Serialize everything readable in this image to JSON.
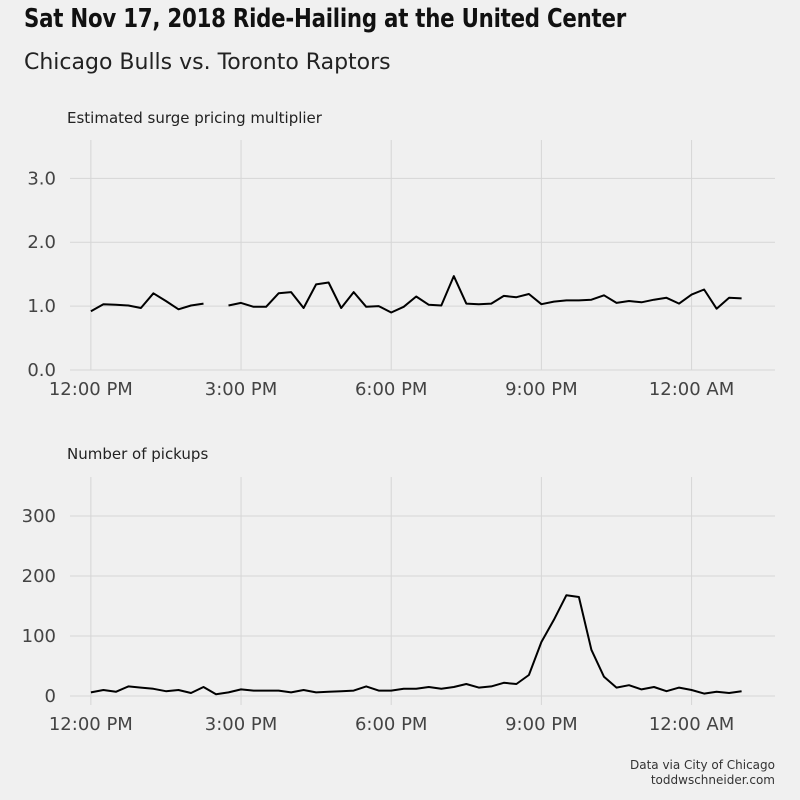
{
  "title": "Sat Nov 17, 2018 Ride-Hailing at the United Center",
  "subtitle": "Chicago Bulls vs. Toronto Raptors",
  "caption": [
    "Data via City of Chicago",
    "toddwschneider.com"
  ],
  "chart_data": [
    {
      "type": "line",
      "title": "Estimated surge pricing multiplier",
      "xlabel": "",
      "ylabel": "",
      "x_unit": "time of day (12:00 PM Nov 17 to ~1:00 AM Nov 18)",
      "xlim": [
        "11:35 AM",
        "1:40 AM"
      ],
      "ylim": [
        0,
        3.6
      ],
      "x_ticks": [
        "12:00 PM",
        "3:00 PM",
        "6:00 PM",
        "9:00 PM",
        "12:00 AM"
      ],
      "y_ticks": [
        "0.0",
        "1.0",
        "2.0",
        "3.0"
      ],
      "grid": true,
      "series": [
        {
          "x": [
            "12:00 PM",
            "12:15 PM",
            "12:30 PM",
            "12:45 PM",
            "1:00 PM",
            "1:15 PM",
            "1:30 PM",
            "1:45 PM",
            "2:00 PM",
            "2:15 PM",
            "2:30 PM",
            "2:45 PM",
            "3:00 PM",
            "3:15 PM",
            "3:30 PM",
            "3:45 PM",
            "4:00 PM",
            "4:15 PM",
            "4:30 PM",
            "4:45 PM",
            "5:00 PM",
            "5:15 PM",
            "5:30 PM",
            "5:45 PM",
            "6:00 PM",
            "6:15 PM",
            "6:30 PM",
            "6:45 PM",
            "7:00 PM",
            "7:15 PM",
            "7:30 PM",
            "7:45 PM",
            "8:00 PM",
            "8:15 PM",
            "8:30 PM",
            "8:45 PM",
            "9:00 PM",
            "9:15 PM",
            "9:30 PM",
            "9:45 PM",
            "10:00 PM",
            "10:15 PM",
            "10:30 PM",
            "10:45 PM",
            "11:00 PM",
            "11:15 PM",
            "11:30 PM",
            "11:45 PM",
            "12:00 AM",
            "12:15 AM",
            "12:30 AM",
            "12:45 AM",
            "1:00 AM"
          ],
          "values": [
            0.92,
            1.03,
            1.02,
            1.01,
            0.97,
            1.2,
            1.08,
            0.95,
            1.01,
            1.04,
            null,
            1.01,
            1.05,
            0.99,
            0.99,
            1.2,
            1.22,
            0.97,
            1.34,
            1.37,
            0.97,
            1.22,
            0.99,
            1.0,
            0.9,
            0.99,
            1.15,
            1.02,
            1.01,
            1.47,
            1.04,
            1.03,
            1.04,
            1.16,
            1.14,
            1.19,
            1.03,
            1.07,
            1.09,
            1.09,
            1.1,
            1.17,
            1.05,
            1.08,
            1.06,
            1.1,
            1.13,
            1.04,
            1.18,
            1.26,
            0.96,
            1.13,
            1.12
          ]
        }
      ]
    },
    {
      "type": "line",
      "title": "Number of pickups",
      "xlabel": "",
      "ylabel": "",
      "xlim": [
        "11:35 AM",
        "1:40 AM"
      ],
      "ylim": [
        -15,
        365
      ],
      "x_ticks": [
        "12:00 PM",
        "3:00 PM",
        "6:00 PM",
        "9:00 PM",
        "12:00 AM"
      ],
      "y_ticks": [
        "0",
        "100",
        "200",
        "300"
      ],
      "grid": true,
      "series": [
        {
          "x": [
            "12:00 PM",
            "12:15 PM",
            "12:30 PM",
            "12:45 PM",
            "1:00 PM",
            "1:15 PM",
            "1:30 PM",
            "1:45 PM",
            "2:00 PM",
            "2:15 PM",
            "2:30 PM",
            "2:45 PM",
            "3:00 PM",
            "3:15 PM",
            "3:30 PM",
            "3:45 PM",
            "4:00 PM",
            "4:15 PM",
            "4:30 PM",
            "4:45 PM",
            "5:00 PM",
            "5:15 PM",
            "5:30 PM",
            "5:45 PM",
            "6:00 PM",
            "6:15 PM",
            "6:30 PM",
            "6:45 PM",
            "7:00 PM",
            "7:15 PM",
            "7:30 PM",
            "7:45 PM",
            "8:00 PM",
            "8:15 PM",
            "8:30 PM",
            "8:45 PM",
            "9:00 PM",
            "9:15 PM",
            "9:30 PM",
            "9:45 PM",
            "10:00 PM",
            "10:15 PM",
            "10:30 PM",
            "10:45 PM",
            "11:00 PM",
            "11:15 PM",
            "11:30 PM",
            "11:45 PM",
            "12:00 AM",
            "12:15 AM",
            "12:30 AM",
            "12:45 AM",
            "1:00 AM"
          ],
          "values": [
            6,
            10,
            7,
            16,
            14,
            12,
            8,
            10,
            5,
            15,
            3,
            6,
            11,
            9,
            9,
            9,
            6,
            10,
            6,
            7,
            8,
            9,
            16,
            9,
            9,
            12,
            12,
            15,
            12,
            15,
            20,
            14,
            16,
            22,
            20,
            35,
            90,
            127,
            168,
            165,
            77,
            32,
            14,
            18,
            11,
            15,
            8,
            14,
            10,
            4,
            7,
            5,
            8
          ]
        }
      ]
    }
  ]
}
